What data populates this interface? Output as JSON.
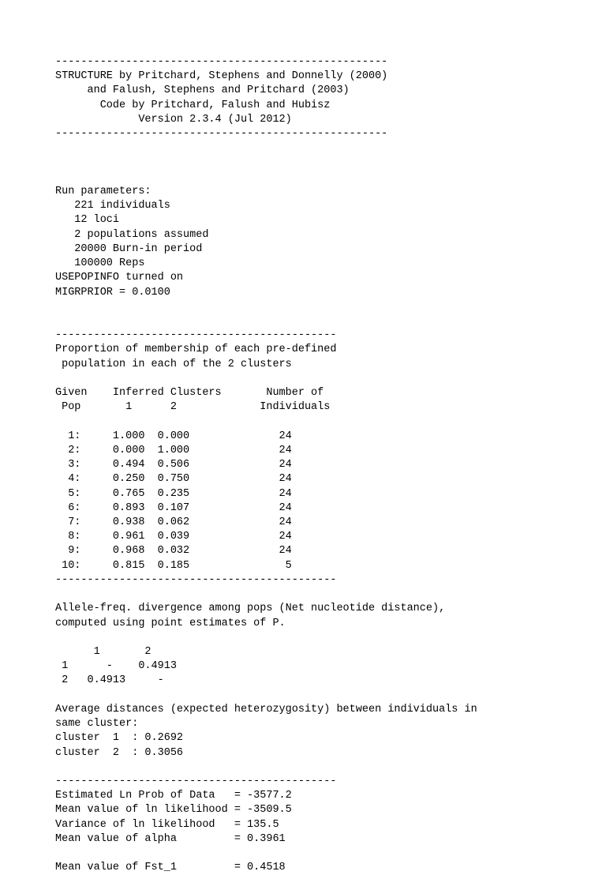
{
  "header": {
    "divider": "----------------------------------------------------",
    "line1": "STRUCTURE by Pritchard, Stephens and Donnelly (2000)",
    "line2": "     and Falush, Stephens and Pritchard (2003)",
    "line3": "       Code by Pritchard, Falush and Hubisz",
    "line4": "             Version 2.3.4 (Jul 2012)",
    "divider2": "----------------------------------------------------"
  },
  "run_params": {
    "title": "Run parameters:",
    "individuals": "   221 individuals",
    "loci": "   12 loci",
    "pops": "   2 populations assumed",
    "burnin": "   20000 Burn-in period",
    "reps": "   100000 Reps",
    "usepopinfo": "USEPOPINFO turned on",
    "migrprior": "MIGRPRIOR = 0.0100"
  },
  "membership": {
    "divider": "--------------------------------------------",
    "title1": "Proportion of membership of each pre-defined",
    "title2": " population in each of the 2 clusters",
    "head1": "Given    Inferred Clusters       Number of",
    "head2": " Pop       1      2             Individuals",
    "rows": [
      "  1:     1.000  0.000              24",
      "  2:     0.000  1.000              24",
      "  3:     0.494  0.506              24",
      "  4:     0.250  0.750              24",
      "  5:     0.765  0.235              24",
      "  6:     0.893  0.107              24",
      "  7:     0.938  0.062              24",
      "  8:     0.961  0.039              24",
      "  9:     0.968  0.032              24",
      " 10:     0.815  0.185               5"
    ],
    "divider2": "--------------------------------------------"
  },
  "allele_freq": {
    "line1": "Allele-freq. divergence among pops (Net nucleotide distance),",
    "line2": "computed using point estimates of P.",
    "head": "      1       2      ",
    "row1": " 1      -    0.4913  ",
    "row2": " 2   0.4913     -    "
  },
  "heterozygosity": {
    "line1": "Average distances (expected heterozygosity) between individuals in",
    "line2": "same cluster:",
    "cluster1": "cluster  1  : 0.2692",
    "cluster2": "cluster  2  : 0.3056"
  },
  "stats": {
    "divider": "--------------------------------------------",
    "ln_prob": "Estimated Ln Prob of Data   = -3577.2",
    "mean_ll": "Mean value of ln likelihood = -3509.5",
    "var_ll": "Variance of ln likelihood   = 135.5",
    "alpha": "Mean value of alpha         = 0.3961",
    "fst1": "Mean value of Fst_1         = 0.4518"
  }
}
